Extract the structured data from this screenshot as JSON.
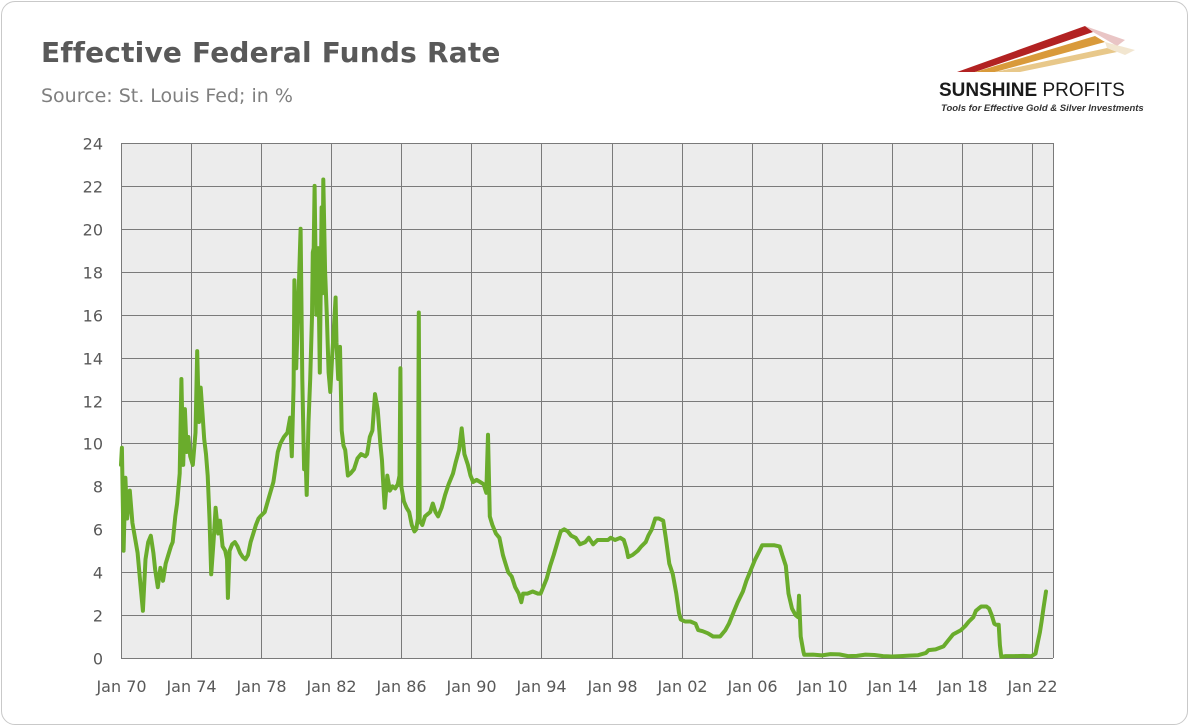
{
  "header": {
    "title": "Effective Federal Funds Rate",
    "subtitle": "Source: St. Louis Fed; in %"
  },
  "logo": {
    "name_bold": "SUNSHINE",
    "name_thin": " PROFITS",
    "tagline": "Tools for Effective Gold & Silver Investments"
  },
  "colors": {
    "line": "#6aac2c",
    "plot_bg": "#ececec",
    "grid": "#7a7a7a",
    "axis_text": "#595959"
  },
  "chart_data": {
    "type": "line",
    "title": "Effective Federal Funds Rate",
    "subtitle": "Source: St. Louis Fed; in %",
    "xlabel": "",
    "ylabel": "",
    "xlim": [
      1970,
      2023.2
    ],
    "ylim": [
      0,
      24
    ],
    "y_ticks": [
      0,
      2,
      4,
      6,
      8,
      10,
      12,
      14,
      16,
      18,
      20,
      22,
      24
    ],
    "x_ticks": [
      {
        "value": 1970,
        "label": "Jan 70"
      },
      {
        "value": 1974,
        "label": "Jan 74"
      },
      {
        "value": 1978,
        "label": "Jan 78"
      },
      {
        "value": 1982,
        "label": "Jan 82"
      },
      {
        "value": 1986,
        "label": "Jan 86"
      },
      {
        "value": 1990,
        "label": "Jan 90"
      },
      {
        "value": 1994,
        "label": "Jan 94"
      },
      {
        "value": 1998,
        "label": "Jan 98"
      },
      {
        "value": 2002,
        "label": "Jan 02"
      },
      {
        "value": 2006,
        "label": "Jan 06"
      },
      {
        "value": 2010,
        "label": "Jan 10"
      },
      {
        "value": 2014,
        "label": "Jan 14"
      },
      {
        "value": 2018,
        "label": "Jan 18"
      },
      {
        "value": 2022,
        "label": "Jan 22"
      }
    ],
    "grid": true,
    "legend": "none",
    "series": [
      {
        "name": "Effective Federal Funds Rate",
        "points": [
          [
            1970.0,
            9.0
          ],
          [
            1970.05,
            9.8
          ],
          [
            1970.15,
            5.0
          ],
          [
            1970.25,
            8.4
          ],
          [
            1970.35,
            6.5
          ],
          [
            1970.5,
            7.8
          ],
          [
            1970.65,
            6.3
          ],
          [
            1970.8,
            5.6
          ],
          [
            1970.95,
            4.9
          ],
          [
            1971.1,
            3.5
          ],
          [
            1971.25,
            2.2
          ],
          [
            1971.4,
            4.6
          ],
          [
            1971.55,
            5.4
          ],
          [
            1971.7,
            5.7
          ],
          [
            1971.85,
            4.9
          ],
          [
            1971.95,
            4.1
          ],
          [
            1972.1,
            3.3
          ],
          [
            1972.25,
            4.2
          ],
          [
            1972.4,
            3.6
          ],
          [
            1972.55,
            4.4
          ],
          [
            1972.7,
            4.8
          ],
          [
            1972.85,
            5.2
          ],
          [
            1972.95,
            5.4
          ],
          [
            1973.1,
            6.6
          ],
          [
            1973.2,
            7.2
          ],
          [
            1973.35,
            8.6
          ],
          [
            1973.45,
            13.0
          ],
          [
            1973.55,
            9.0
          ],
          [
            1973.65,
            11.6
          ],
          [
            1973.75,
            9.6
          ],
          [
            1973.85,
            10.3
          ],
          [
            1973.95,
            9.4
          ],
          [
            1974.1,
            9.0
          ],
          [
            1974.25,
            10.5
          ],
          [
            1974.35,
            14.3
          ],
          [
            1974.45,
            11.0
          ],
          [
            1974.55,
            12.6
          ],
          [
            1974.65,
            11.4
          ],
          [
            1974.75,
            10.2
          ],
          [
            1974.85,
            9.5
          ],
          [
            1974.95,
            8.5
          ],
          [
            1975.05,
            6.5
          ],
          [
            1975.15,
            3.9
          ],
          [
            1975.3,
            5.6
          ],
          [
            1975.4,
            7.0
          ],
          [
            1975.55,
            5.8
          ],
          [
            1975.65,
            6.4
          ],
          [
            1975.8,
            5.2
          ],
          [
            1975.95,
            5.0
          ],
          [
            1976.05,
            4.6
          ],
          [
            1976.1,
            2.8
          ],
          [
            1976.2,
            5.0
          ],
          [
            1976.35,
            5.3
          ],
          [
            1976.5,
            5.4
          ],
          [
            1976.65,
            5.2
          ],
          [
            1976.8,
            4.9
          ],
          [
            1976.95,
            4.7
          ],
          [
            1977.1,
            4.6
          ],
          [
            1977.25,
            4.8
          ],
          [
            1977.4,
            5.4
          ],
          [
            1977.55,
            5.8
          ],
          [
            1977.7,
            6.2
          ],
          [
            1977.85,
            6.5
          ],
          [
            1977.95,
            6.6
          ],
          [
            1978.2,
            6.8
          ],
          [
            1978.45,
            7.5
          ],
          [
            1978.7,
            8.2
          ],
          [
            1978.95,
            9.6
          ],
          [
            1979.1,
            10.0
          ],
          [
            1979.3,
            10.3
          ],
          [
            1979.5,
            10.5
          ],
          [
            1979.65,
            11.2
          ],
          [
            1979.75,
            9.4
          ],
          [
            1979.85,
            12.7
          ],
          [
            1979.9,
            17.6
          ],
          [
            1980.0,
            13.5
          ],
          [
            1980.15,
            17.3
          ],
          [
            1980.25,
            20.0
          ],
          [
            1980.35,
            13.0
          ],
          [
            1980.45,
            8.8
          ],
          [
            1980.55,
            9.0
          ],
          [
            1980.6,
            7.6
          ],
          [
            1980.7,
            11.0
          ],
          [
            1980.8,
            13.0
          ],
          [
            1980.9,
            15.9
          ],
          [
            1980.95,
            18.9
          ],
          [
            1981.0,
            19.1
          ],
          [
            1981.05,
            22.0
          ],
          [
            1981.15,
            16.0
          ],
          [
            1981.25,
            19.1
          ],
          [
            1981.35,
            13.3
          ],
          [
            1981.45,
            21.0
          ],
          [
            1981.5,
            17.0
          ],
          [
            1981.55,
            22.3
          ],
          [
            1981.65,
            18.0
          ],
          [
            1981.75,
            16.0
          ],
          [
            1981.85,
            13.3
          ],
          [
            1981.95,
            12.4
          ],
          [
            1982.05,
            14.0
          ],
          [
            1982.15,
            15.4
          ],
          [
            1982.25,
            16.8
          ],
          [
            1982.3,
            14.7
          ],
          [
            1982.4,
            13.0
          ],
          [
            1982.5,
            14.5
          ],
          [
            1982.6,
            10.6
          ],
          [
            1982.7,
            9.9
          ],
          [
            1982.8,
            9.7
          ],
          [
            1982.95,
            8.5
          ],
          [
            1983.1,
            8.6
          ],
          [
            1983.3,
            8.8
          ],
          [
            1983.5,
            9.3
          ],
          [
            1983.7,
            9.5
          ],
          [
            1983.95,
            9.4
          ],
          [
            1984.05,
            9.5
          ],
          [
            1984.2,
            10.3
          ],
          [
            1984.35,
            10.6
          ],
          [
            1984.5,
            12.3
          ],
          [
            1984.65,
            11.6
          ],
          [
            1984.8,
            10.0
          ],
          [
            1984.9,
            9.2
          ],
          [
            1984.95,
            8.4
          ],
          [
            1985.05,
            7.0
          ],
          [
            1985.2,
            8.5
          ],
          [
            1985.35,
            7.8
          ],
          [
            1985.5,
            8.0
          ],
          [
            1985.65,
            7.9
          ],
          [
            1985.8,
            8.1
          ],
          [
            1985.9,
            8.5
          ],
          [
            1985.95,
            13.5
          ],
          [
            1986.0,
            8.0
          ],
          [
            1986.15,
            7.3
          ],
          [
            1986.3,
            7.0
          ],
          [
            1986.45,
            6.8
          ],
          [
            1986.6,
            6.2
          ],
          [
            1986.75,
            5.9
          ],
          [
            1986.85,
            6.0
          ],
          [
            1986.95,
            6.5
          ],
          [
            1987.0,
            16.1
          ],
          [
            1987.05,
            6.4
          ],
          [
            1987.2,
            6.2
          ],
          [
            1987.35,
            6.6
          ],
          [
            1987.5,
            6.7
          ],
          [
            1987.65,
            6.8
          ],
          [
            1987.8,
            7.2
          ],
          [
            1987.95,
            6.8
          ],
          [
            1988.1,
            6.6
          ],
          [
            1988.3,
            7.0
          ],
          [
            1988.5,
            7.6
          ],
          [
            1988.7,
            8.1
          ],
          [
            1988.95,
            8.6
          ],
          [
            1989.1,
            9.1
          ],
          [
            1989.3,
            9.7
          ],
          [
            1989.45,
            10.7
          ],
          [
            1989.6,
            9.5
          ],
          [
            1989.8,
            9.0
          ],
          [
            1989.95,
            8.5
          ],
          [
            1990.1,
            8.2
          ],
          [
            1990.3,
            8.3
          ],
          [
            1990.5,
            8.2
          ],
          [
            1990.7,
            8.1
          ],
          [
            1990.85,
            7.7
          ],
          [
            1990.9,
            9.0
          ],
          [
            1990.95,
            10.4
          ],
          [
            1991.05,
            6.6
          ],
          [
            1991.2,
            6.2
          ],
          [
            1991.4,
            5.8
          ],
          [
            1991.6,
            5.6
          ],
          [
            1991.8,
            4.8
          ],
          [
            1991.95,
            4.4
          ],
          [
            1992.1,
            4.0
          ],
          [
            1992.3,
            3.8
          ],
          [
            1992.5,
            3.3
          ],
          [
            1992.7,
            3.0
          ],
          [
            1992.85,
            2.6
          ],
          [
            1992.95,
            3.0
          ],
          [
            1993.2,
            3.0
          ],
          [
            1993.5,
            3.1
          ],
          [
            1993.8,
            3.0
          ],
          [
            1993.95,
            3.0
          ],
          [
            1994.1,
            3.3
          ],
          [
            1994.3,
            3.7
          ],
          [
            1994.5,
            4.3
          ],
          [
            1994.7,
            4.8
          ],
          [
            1994.95,
            5.5
          ],
          [
            1995.1,
            5.9
          ],
          [
            1995.3,
            6.0
          ],
          [
            1995.5,
            5.9
          ],
          [
            1995.7,
            5.7
          ],
          [
            1995.95,
            5.6
          ],
          [
            1996.2,
            5.3
          ],
          [
            1996.5,
            5.4
          ],
          [
            1996.7,
            5.6
          ],
          [
            1996.95,
            5.3
          ],
          [
            1997.2,
            5.5
          ],
          [
            1997.5,
            5.5
          ],
          [
            1997.8,
            5.5
          ],
          [
            1997.95,
            5.6
          ],
          [
            1998.2,
            5.5
          ],
          [
            1998.5,
            5.6
          ],
          [
            1998.7,
            5.5
          ],
          [
            1998.85,
            5.1
          ],
          [
            1998.95,
            4.7
          ],
          [
            1999.2,
            4.8
          ],
          [
            1999.5,
            5.0
          ],
          [
            1999.7,
            5.2
          ],
          [
            1999.95,
            5.4
          ],
          [
            2000.1,
            5.7
          ],
          [
            2000.3,
            6.0
          ],
          [
            2000.5,
            6.5
          ],
          [
            2000.7,
            6.5
          ],
          [
            2000.95,
            6.4
          ],
          [
            2001.1,
            5.6
          ],
          [
            2001.3,
            4.4
          ],
          [
            2001.5,
            3.9
          ],
          [
            2001.7,
            3.0
          ],
          [
            2001.85,
            2.1
          ],
          [
            2001.95,
            1.8
          ],
          [
            2002.2,
            1.7
          ],
          [
            2002.5,
            1.7
          ],
          [
            2002.8,
            1.6
          ],
          [
            2002.95,
            1.3
          ],
          [
            2003.2,
            1.25
          ],
          [
            2003.5,
            1.15
          ],
          [
            2003.8,
            1.0
          ],
          [
            2003.95,
            1.0
          ],
          [
            2004.2,
            1.0
          ],
          [
            2004.5,
            1.3
          ],
          [
            2004.7,
            1.6
          ],
          [
            2004.95,
            2.1
          ],
          [
            2005.2,
            2.6
          ],
          [
            2005.5,
            3.1
          ],
          [
            2005.7,
            3.6
          ],
          [
            2005.95,
            4.1
          ],
          [
            2006.2,
            4.6
          ],
          [
            2006.45,
            5.0
          ],
          [
            2006.6,
            5.25
          ],
          [
            2006.95,
            5.25
          ],
          [
            2007.3,
            5.25
          ],
          [
            2007.6,
            5.2
          ],
          [
            2007.75,
            4.8
          ],
          [
            2007.95,
            4.3
          ],
          [
            2008.1,
            3.0
          ],
          [
            2008.3,
            2.3
          ],
          [
            2008.5,
            2.0
          ],
          [
            2008.65,
            1.9
          ],
          [
            2008.7,
            2.9
          ],
          [
            2008.8,
            1.0
          ],
          [
            2008.95,
            0.3
          ],
          [
            2009.0,
            0.15
          ],
          [
            2009.5,
            0.16
          ],
          [
            2010.0,
            0.12
          ],
          [
            2010.5,
            0.18
          ],
          [
            2011.0,
            0.17
          ],
          [
            2011.5,
            0.09
          ],
          [
            2012.0,
            0.1
          ],
          [
            2012.5,
            0.16
          ],
          [
            2013.0,
            0.14
          ],
          [
            2013.5,
            0.09
          ],
          [
            2014.0,
            0.07
          ],
          [
            2014.5,
            0.09
          ],
          [
            2015.0,
            0.11
          ],
          [
            2015.5,
            0.13
          ],
          [
            2015.95,
            0.24
          ],
          [
            2016.1,
            0.37
          ],
          [
            2016.5,
            0.4
          ],
          [
            2016.95,
            0.54
          ],
          [
            2017.2,
            0.8
          ],
          [
            2017.5,
            1.1
          ],
          [
            2017.95,
            1.3
          ],
          [
            2018.2,
            1.5
          ],
          [
            2018.4,
            1.7
          ],
          [
            2018.65,
            1.9
          ],
          [
            2018.8,
            2.2
          ],
          [
            2018.95,
            2.3
          ],
          [
            2019.1,
            2.4
          ],
          [
            2019.4,
            2.4
          ],
          [
            2019.55,
            2.3
          ],
          [
            2019.7,
            2.0
          ],
          [
            2019.85,
            1.6
          ],
          [
            2019.95,
            1.55
          ],
          [
            2020.1,
            1.55
          ],
          [
            2020.17,
            0.6
          ],
          [
            2020.25,
            0.05
          ],
          [
            2020.5,
            0.09
          ],
          [
            2021.0,
            0.09
          ],
          [
            2021.5,
            0.1
          ],
          [
            2021.95,
            0.08
          ],
          [
            2022.2,
            0.2
          ],
          [
            2022.35,
            0.8
          ],
          [
            2022.45,
            1.2
          ],
          [
            2022.55,
            1.7
          ],
          [
            2022.65,
            2.3
          ],
          [
            2022.8,
            3.1
          ]
        ]
      }
    ]
  }
}
